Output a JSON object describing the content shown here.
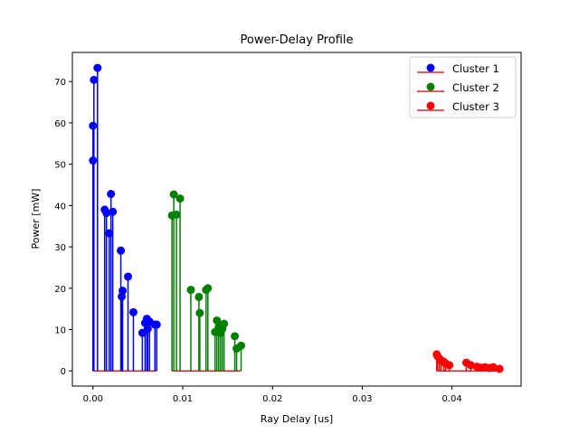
{
  "chart_data": {
    "type": "stem",
    "title": "Power-Delay Profile",
    "xlabel": "Ray Delay [us]",
    "ylabel": "Power [mW]",
    "xlim": [
      -0.0023,
      0.0477
    ],
    "ylim": [
      -3.67,
      77.04
    ],
    "xticks": [
      0.0,
      0.01,
      0.02,
      0.03,
      0.04
    ],
    "xtick_labels": [
      "0.00",
      "0.01",
      "0.02",
      "0.03",
      "0.04"
    ],
    "yticks": [
      0,
      10,
      20,
      30,
      40,
      50,
      60,
      70
    ],
    "ytick_labels": [
      "0",
      "10",
      "20",
      "30",
      "40",
      "50",
      "60",
      "70"
    ],
    "grid": false,
    "legend_position": "top-right",
    "baseline_color": "#d62728",
    "series": [
      {
        "name": "Cluster 1",
        "color": "#0000ff",
        "x": [
          0.0,
          0.0,
          0.0001,
          0.0005,
          0.0013,
          0.0015,
          0.0018,
          0.002,
          0.0022,
          0.0031,
          0.0032,
          0.0033,
          0.0039,
          0.0045,
          0.0055,
          0.0058,
          0.006,
          0.0061,
          0.0063,
          0.0069,
          0.0071
        ],
        "values": [
          50.9,
          59.3,
          70.4,
          73.3,
          39.0,
          38.2,
          33.3,
          42.8,
          38.5,
          29.1,
          18.0,
          19.4,
          22.8,
          14.2,
          9.2,
          11.6,
          12.6,
          10.2,
          11.9,
          11.2,
          11.2
        ]
      },
      {
        "name": "Cluster 2",
        "color": "#008000",
        "x": [
          0.0088,
          0.009,
          0.0093,
          0.0097,
          0.0109,
          0.0118,
          0.0119,
          0.0126,
          0.0128,
          0.0136,
          0.0138,
          0.014,
          0.0142,
          0.0144,
          0.0146,
          0.0158,
          0.016,
          0.0165
        ],
        "values": [
          37.6,
          42.7,
          37.8,
          41.7,
          19.6,
          17.9,
          14.0,
          19.6,
          20.0,
          9.4,
          12.2,
          10.6,
          9.2,
          10.2,
          11.4,
          8.4,
          5.4,
          6.1
        ]
      },
      {
        "name": "Cluster 3",
        "color": "#ff0000",
        "x": [
          0.0383,
          0.0384,
          0.0386,
          0.0388,
          0.0391,
          0.0393,
          0.0397,
          0.0416,
          0.0421,
          0.0428,
          0.0433,
          0.0437,
          0.0442,
          0.0446,
          0.0453
        ],
        "values": [
          4.0,
          3.5,
          3.0,
          2.5,
          2.2,
          1.8,
          1.4,
          2.0,
          1.4,
          1.0,
          0.8,
          0.9,
          0.7,
          0.9,
          0.5
        ]
      }
    ]
  }
}
